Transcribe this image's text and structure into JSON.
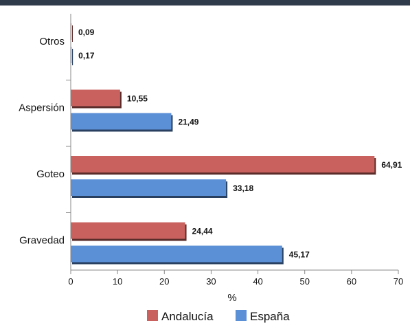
{
  "chart_data": {
    "type": "bar",
    "orientation": "horizontal",
    "categories": [
      "Otros",
      "Aspersión",
      "Goteo",
      "Gravedad"
    ],
    "series": [
      {
        "name": "Andalucía",
        "values": [
          0.09,
          10.55,
          64.91,
          24.44
        ],
        "labels": [
          "0,09",
          "10,55",
          "64,91",
          "24,44"
        ],
        "color": "#c9625e"
      },
      {
        "name": "España",
        "values": [
          0.17,
          21.49,
          33.18,
          45.17
        ],
        "labels": [
          "0,17",
          "21,49",
          "33,18",
          "45,17"
        ],
        "color": "#5b8fd6"
      }
    ],
    "xlabel": "%",
    "xlim": [
      0,
      70
    ],
    "x_ticks": [
      "0",
      "10",
      "20",
      "30",
      "40",
      "50",
      "60",
      "70"
    ],
    "grid": false,
    "legend_position": "bottom"
  }
}
